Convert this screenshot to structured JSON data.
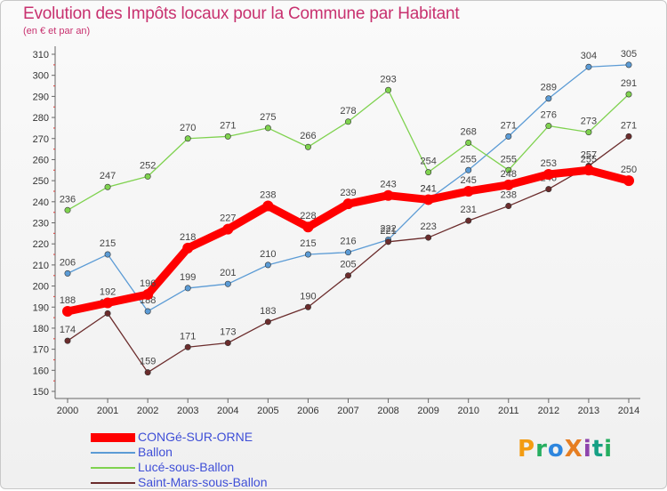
{
  "title": "Evolution des Impôts locaux pour la Commune par Habitant",
  "subtitle": "(en € et par an)",
  "logo": {
    "text": "ProXiti",
    "letters": [
      {
        "ch": "P",
        "color": "#f39c12"
      },
      {
        "ch": "r",
        "color": "#27ae60"
      },
      {
        "ch": "o",
        "color": "#2e86de"
      },
      {
        "ch": "X",
        "color": "#e67e22"
      },
      {
        "ch": "i",
        "color": "#8e44ad"
      },
      {
        "ch": "t",
        "color": "#16a085"
      },
      {
        "ch": "i",
        "color": "#27ae60"
      }
    ]
  },
  "chart_data": {
    "type": "line",
    "title": "Evolution des Impôts locaux pour la Commune par Habitant",
    "subtitle": "(en € et par an)",
    "x": [
      "2000",
      "2001",
      "2002",
      "2003",
      "2004",
      "2005",
      "2006",
      "2007",
      "2008",
      "2009",
      "2010",
      "2011",
      "2012",
      "2013",
      "2014"
    ],
    "ylim": [
      150,
      310
    ],
    "yticks": [
      150,
      160,
      170,
      180,
      190,
      200,
      210,
      220,
      230,
      240,
      250,
      260,
      270,
      280,
      290,
      300,
      310
    ],
    "grid": false,
    "legend_position": "bottom-left",
    "series": [
      {
        "name": "CONGé-SUR-ORNE",
        "color": "#ff0000",
        "style": "thick",
        "values": [
          188,
          192,
          196,
          218,
          227,
          238,
          228,
          239,
          243,
          241,
          245,
          248,
          253,
          255,
          250
        ]
      },
      {
        "name": "Ballon",
        "color": "#5b9bd5",
        "style": "thin",
        "values": [
          206,
          215,
          188,
          199,
          201,
          210,
          215,
          216,
          222,
          241,
          255,
          271,
          289,
          304,
          305
        ]
      },
      {
        "name": "Lucé-sous-Ballon",
        "color": "#7fd24f",
        "style": "thin",
        "values": [
          236,
          247,
          252,
          270,
          271,
          275,
          266,
          278,
          293,
          254,
          268,
          255,
          276,
          273,
          291
        ]
      },
      {
        "name": "Saint-Mars-sous-Ballon",
        "color": "#6b2c2c",
        "style": "thin",
        "values": [
          174,
          187,
          159,
          171,
          173,
          183,
          190,
          205,
          221,
          223,
          231,
          238,
          246,
          257,
          271
        ]
      }
    ]
  }
}
